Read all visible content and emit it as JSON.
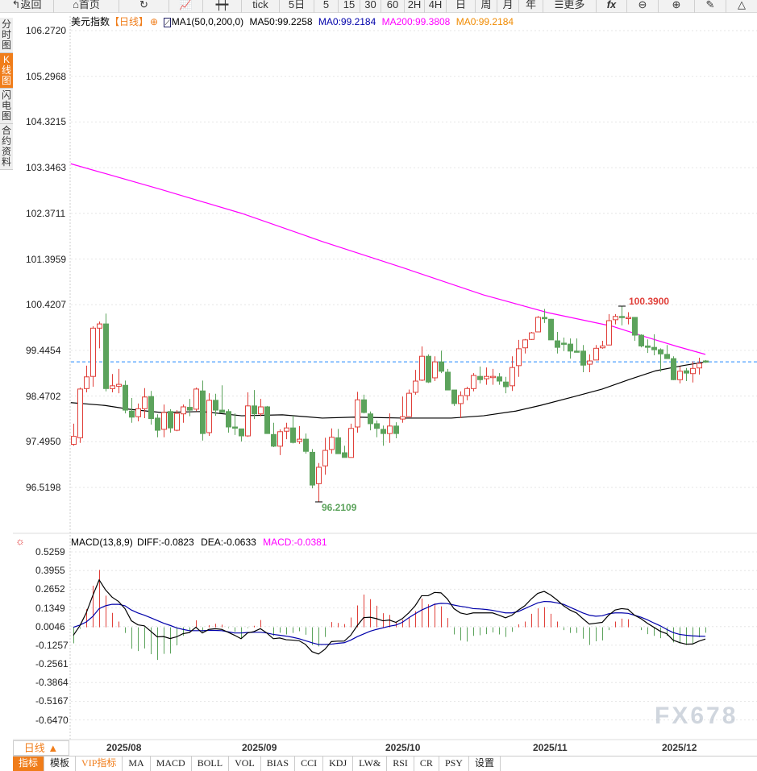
{
  "toolbar": {
    "back": "返回",
    "home": "首页",
    "tick": "tick",
    "periods": [
      "5日",
      "5",
      "15",
      "30",
      "60",
      "2H",
      "4H",
      "日",
      "周",
      "月",
      "年"
    ],
    "more": "更多",
    "fx": "fx"
  },
  "sidebar": [
    {
      "label": "分时图",
      "active": false
    },
    {
      "label": "K线图",
      "active": true
    },
    {
      "label": "闪电图",
      "active": false
    },
    {
      "label": "合约资料",
      "active": false
    }
  ],
  "legend": {
    "symbol": "美元指数",
    "period": "【日线】",
    "indicator": "MA1(50,0,200,0)",
    "ma50": "MA50:99.2258",
    "ma0a": "MA0:99.2184",
    "ma200": "MA200:99.3808",
    "ma0b": "MA0:99.2184"
  },
  "colors": {
    "up": "#e0403a",
    "down": "#5ca35c",
    "ma50": "#000000",
    "ma200": "#ff00ff",
    "dea": "#0000aa",
    "accent": "#f07d1a",
    "lastline": "#1e88ff"
  },
  "price_axis": [
    "106.2720",
    "105.2968",
    "104.3215",
    "103.3463",
    "102.3711",
    "101.3959",
    "100.4207",
    "99.4454",
    "98.4702",
    "97.4950",
    "96.5198"
  ],
  "macd_axis": [
    "0.5259",
    "0.3955",
    "0.2652",
    "0.1349",
    "0.0046",
    "-0.1257",
    "-0.2561",
    "-0.3864",
    "-0.5167",
    "-0.6470"
  ],
  "high_label": "100.3900",
  "low_label": "96.2109",
  "last_price": 99.2,
  "macd_legend": {
    "name": "MACD(13,8,9)",
    "diff": "DIFF:-0.0823",
    "dea": "DEA:-0.0633",
    "macd": "MACD:-0.0381"
  },
  "months": [
    "2025/08",
    "2025/09",
    "2025/10",
    "2025/11",
    "2025/12"
  ],
  "period_button": "日线 ▲",
  "tabs": [
    "指标",
    "模板",
    "VIP指标",
    "MA",
    "MACD",
    "BOLL",
    "VOL",
    "BIAS",
    "CCI",
    "KDJ",
    "LW&",
    "RSI",
    "CR",
    "PSY",
    "设置"
  ],
  "watermark": "FX678",
  "chart_data": {
    "type": "candlestick",
    "title": "美元指数 日线",
    "ylim": [
      96.0,
      106.272
    ],
    "candles_ohlc": [
      [
        97.44,
        97.88,
        97.41,
        97.61
      ],
      [
        97.58,
        98.65,
        97.47,
        98.62
      ],
      [
        98.63,
        99.12,
        98.55,
        98.88
      ],
      [
        98.89,
        99.96,
        98.67,
        99.92
      ],
      [
        99.92,
        100.06,
        99.49,
        100.01
      ],
      [
        100.01,
        100.23,
        98.57,
        98.63
      ],
      [
        98.63,
        98.94,
        98.55,
        98.69
      ],
      [
        98.68,
        99.05,
        98.53,
        98.72
      ],
      [
        98.7,
        98.8,
        98.1,
        98.17
      ],
      [
        98.15,
        98.43,
        97.9,
        98.02
      ],
      [
        98.03,
        98.31,
        97.93,
        98.2
      ],
      [
        98.2,
        98.64,
        98.0,
        98.45
      ],
      [
        98.46,
        98.58,
        97.86,
        97.99
      ],
      [
        98.0,
        98.08,
        97.59,
        97.74
      ],
      [
        97.76,
        98.29,
        97.59,
        98.12
      ],
      [
        98.14,
        98.19,
        97.69,
        97.79
      ],
      [
        97.74,
        98.17,
        97.72,
        98.1
      ],
      [
        98.09,
        98.29,
        97.9,
        98.24
      ],
      [
        98.23,
        98.41,
        98.04,
        98.17
      ],
      [
        98.19,
        98.65,
        98.15,
        98.62
      ],
      [
        98.58,
        98.8,
        97.52,
        97.67
      ],
      [
        97.69,
        98.53,
        97.62,
        98.38
      ],
      [
        98.38,
        98.52,
        98.05,
        98.17
      ],
      [
        98.17,
        98.7,
        98.12,
        98.12
      ],
      [
        98.14,
        98.19,
        97.69,
        97.81
      ],
      [
        97.81,
        98.1,
        97.64,
        97.79
      ],
      [
        97.77,
        97.77,
        97.5,
        97.62
      ],
      [
        97.62,
        98.55,
        97.6,
        98.26
      ],
      [
        98.26,
        98.6,
        97.98,
        98.09
      ],
      [
        98.09,
        98.41,
        98.04,
        98.24
      ],
      [
        98.24,
        98.26,
        97.67,
        97.67
      ],
      [
        97.65,
        97.9,
        97.38,
        97.4
      ],
      [
        97.4,
        97.76,
        97.21,
        97.71
      ],
      [
        97.72,
        97.9,
        97.55,
        97.79
      ],
      [
        97.79,
        98.05,
        97.46,
        97.48
      ],
      [
        97.5,
        97.83,
        97.45,
        97.55
      ],
      [
        97.55,
        97.67,
        97.24,
        97.29
      ],
      [
        97.27,
        97.34,
        96.5,
        96.57
      ],
      [
        96.6,
        97.04,
        96.2109,
        96.95
      ],
      [
        96.98,
        97.58,
        96.79,
        97.31
      ],
      [
        97.33,
        97.78,
        97.24,
        97.59
      ],
      [
        97.58,
        97.77,
        97.24,
        97.24
      ],
      [
        97.26,
        97.41,
        97.16,
        97.16
      ],
      [
        97.16,
        97.88,
        97.16,
        97.78
      ],
      [
        97.81,
        98.56,
        97.69,
        98.39
      ],
      [
        98.39,
        98.5,
        98.1,
        98.12
      ],
      [
        98.09,
        98.14,
        97.74,
        97.88
      ],
      [
        97.88,
        97.95,
        97.59,
        97.78
      ],
      [
        97.76,
        97.84,
        97.41,
        97.67
      ],
      [
        97.67,
        98.1,
        97.47,
        97.83
      ],
      [
        97.83,
        97.91,
        97.57,
        97.67
      ],
      [
        97.98,
        98.46,
        97.9,
        98.03
      ],
      [
        98.03,
        98.61,
        98.03,
        98.53
      ],
      [
        98.55,
        99.03,
        98.5,
        98.79
      ],
      [
        98.81,
        99.53,
        98.79,
        99.32
      ],
      [
        99.32,
        99.36,
        98.75,
        98.77
      ],
      [
        98.86,
        99.32,
        98.79,
        99.2
      ],
      [
        99.2,
        99.44,
        98.96,
        99.0
      ],
      [
        98.98,
        99.05,
        98.6,
        98.6
      ],
      [
        98.6,
        98.6,
        98.26,
        98.31
      ],
      [
        98.31,
        98.57,
        98.0,
        98.48
      ],
      [
        98.48,
        98.67,
        98.38,
        98.63
      ],
      [
        98.63,
        98.96,
        98.57,
        98.91
      ],
      [
        98.89,
        99.1,
        98.74,
        98.82
      ],
      [
        98.84,
        99.08,
        98.71,
        98.89
      ],
      [
        98.87,
        99.05,
        98.71,
        98.89
      ],
      [
        98.88,
        98.96,
        98.71,
        98.79
      ],
      [
        98.77,
        98.88,
        98.53,
        98.67
      ],
      [
        98.69,
        99.32,
        98.58,
        99.08
      ],
      [
        99.12,
        99.67,
        98.88,
        99.48
      ],
      [
        99.5,
        99.69,
        99.38,
        99.67
      ],
      [
        99.68,
        99.84,
        99.67,
        99.82
      ],
      [
        99.84,
        100.18,
        99.84,
        100.15
      ],
      [
        100.15,
        100.33,
        100.03,
        100.12
      ],
      [
        100.11,
        100.12,
        99.67,
        99.67
      ],
      [
        99.65,
        99.84,
        99.38,
        99.51
      ],
      [
        99.6,
        99.72,
        99.43,
        99.59
      ],
      [
        99.58,
        99.7,
        99.27,
        99.43
      ],
      [
        99.43,
        99.7,
        99.41,
        99.41
      ],
      [
        99.43,
        99.56,
        98.98,
        99.13
      ],
      [
        99.15,
        99.36,
        98.98,
        99.22
      ],
      [
        99.24,
        99.56,
        99.24,
        99.49
      ],
      [
        99.5,
        99.65,
        99.48,
        99.54
      ],
      [
        99.56,
        100.22,
        99.56,
        100.08
      ],
      [
        100.1,
        100.22,
        100.0,
        100.17
      ],
      [
        100.17,
        100.39,
        99.98,
        100.16
      ],
      [
        100.13,
        100.26,
        100.0,
        100.15
      ],
      [
        100.15,
        100.15,
        99.65,
        99.77
      ],
      [
        99.77,
        99.79,
        99.51,
        99.54
      ],
      [
        99.54,
        99.68,
        99.39,
        99.51
      ],
      [
        99.51,
        99.79,
        99.34,
        99.46
      ],
      [
        99.46,
        99.49,
        98.99,
        99.37
      ],
      [
        99.36,
        99.56,
        99.27,
        99.27
      ],
      [
        99.27,
        99.32,
        98.81,
        98.82
      ],
      [
        98.82,
        99.1,
        98.74,
        99.0
      ],
      [
        99.01,
        99.07,
        98.79,
        98.96
      ],
      [
        98.95,
        99.21,
        98.76,
        99.06
      ],
      [
        99.07,
        99.29,
        98.93,
        99.17
      ],
      [
        99.22,
        99.24,
        99.18,
        99.2
      ]
    ],
    "ma50": [
      [
        0.6,
        98.33
      ],
      [
        5.9,
        98.27
      ],
      [
        9.6,
        98.19
      ],
      [
        14.6,
        98.12
      ],
      [
        20.9,
        98.14
      ],
      [
        27.1,
        98.05
      ],
      [
        33.4,
        98.07
      ],
      [
        39.6,
        98.0
      ],
      [
        44.6,
        98.02
      ],
      [
        52.1,
        98.0
      ],
      [
        59.6,
        98.0
      ],
      [
        64.6,
        98.05
      ],
      [
        69.6,
        98.15
      ],
      [
        73.4,
        98.27
      ],
      [
        78.4,
        98.45
      ],
      [
        83,
        98.62
      ],
      [
        87.1,
        98.82
      ],
      [
        91.3,
        99.01
      ],
      [
        95.5,
        99.12
      ],
      [
        99,
        99.2
      ]
    ],
    "ma200": [
      [
        0.6,
        103.43
      ],
      [
        14.6,
        102.88
      ],
      [
        27.1,
        102.37
      ],
      [
        39.6,
        101.77
      ],
      [
        52.1,
        101.21
      ],
      [
        64.6,
        100.63
      ],
      [
        74.6,
        100.25
      ],
      [
        84.6,
        99.96
      ],
      [
        89.6,
        99.74
      ],
      [
        94.6,
        99.53
      ],
      [
        99,
        99.36
      ]
    ],
    "macd": {
      "diff": [
        -0.056,
        0.01,
        0.1,
        0.22,
        0.33,
        0.26,
        0.21,
        0.18,
        0.13,
        0.045,
        0.017,
        0.01,
        -0.028,
        -0.067,
        -0.065,
        -0.079,
        -0.067,
        -0.045,
        -0.037,
        0,
        -0.04,
        -0.015,
        -0.01,
        -0.015,
        -0.035,
        -0.056,
        -0.08,
        -0.04,
        -0.03,
        -0.01,
        -0.04,
        -0.08,
        -0.075,
        -0.087,
        -0.09,
        -0.094,
        -0.12,
        -0.17,
        -0.187,
        -0.154,
        -0.1,
        -0.097,
        -0.097,
        -0.056,
        0.01,
        0.067,
        0.07,
        0.06,
        0.045,
        0.05,
        0.034,
        0.06,
        0.1,
        0.15,
        0.22,
        0.22,
        0.243,
        0.24,
        0.197,
        0.13,
        0.1,
        0.09,
        0.1,
        0.1,
        0.1,
        0.1,
        0.084,
        0.066,
        0.084,
        0.12,
        0.15,
        0.197,
        0.236,
        0.25,
        0.225,
        0.19,
        0.15,
        0.12,
        0.1,
        0.06,
        0.022,
        0.028,
        0.034,
        0.084,
        0.12,
        0.13,
        0.125,
        0.084,
        0.06,
        0.028,
        0,
        -0.028,
        -0.045,
        -0.09,
        -0.107,
        -0.118,
        -0.117,
        -0.097,
        -0.0823
      ],
      "dea": [
        0,
        0.015,
        0.037,
        0.075,
        0.13,
        0.15,
        0.16,
        0.16,
        0.15,
        0.12,
        0.1,
        0.084,
        0.066,
        0.047,
        0.028,
        0.013,
        -0.004,
        -0.015,
        -0.024,
        -0.024,
        -0.024,
        -0.022,
        -0.022,
        -0.024,
        -0.032,
        -0.04,
        -0.04,
        -0.037,
        -0.035,
        -0.035,
        -0.04,
        -0.05,
        -0.056,
        -0.062,
        -0.07,
        -0.08,
        -0.094,
        -0.108,
        -0.12,
        -0.12,
        -0.118,
        -0.112,
        -0.108,
        -0.09,
        -0.066,
        -0.047,
        -0.028,
        -0.015,
        -0.004,
        0.007,
        0.015,
        0.034,
        0.066,
        0.094,
        0.12,
        0.14,
        0.16,
        0.167,
        0.165,
        0.155,
        0.146,
        0.14,
        0.13,
        0.128,
        0.124,
        0.118,
        0.109,
        0.1,
        0.1,
        0.11,
        0.13,
        0.15,
        0.17,
        0.18,
        0.178,
        0.17,
        0.16,
        0.14,
        0.12,
        0.1,
        0.084,
        0.077,
        0.08,
        0.094,
        0.1,
        0.1,
        0.097,
        0.084,
        0.07,
        0.052,
        0.03,
        0.01,
        -0.015,
        -0.037,
        -0.05,
        -0.056,
        -0.06,
        -0.062,
        -0.0633
      ]
    }
  }
}
